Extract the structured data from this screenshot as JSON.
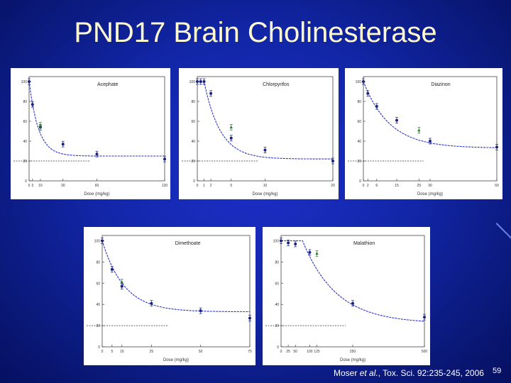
{
  "slide": {
    "title": "PND17 Brain Cholinesterase",
    "citation": {
      "author": "Moser ",
      "etal": "et al.",
      "rest": ", Tox. Sci. 92:235-245, 2006"
    },
    "page_number": "59"
  },
  "colors": {
    "background": "#1226a8",
    "title": "#fffbd0",
    "curve": "#2b35c8",
    "points": "#1a237e",
    "highlight_points": "#2e7d32",
    "reference_line": "#333333"
  },
  "chart_data": [
    {
      "type": "scatter",
      "title": "Acephate",
      "xlabel": "Dose (mg/kg)",
      "ylabel": "",
      "xlim": [
        0,
        120
      ],
      "ylim": [
        0,
        105
      ],
      "x_ticks": [
        "0",
        "3",
        "10",
        "30",
        "60",
        "120"
      ],
      "y_ticks": [
        "0",
        "20",
        "40",
        "60",
        "80",
        "100"
      ],
      "series": [
        {
          "x": [
            0,
            3,
            10,
            30,
            60,
            120
          ],
          "y": [
            100,
            77,
            54,
            37,
            27,
            22
          ]
        },
        {
          "x": [
            10
          ],
          "y": [
            56
          ]
        }
      ],
      "fit": {
        "plateau": 25,
        "top": 100,
        "k": 0.12
      },
      "reference_y": 20
    },
    {
      "type": "scatter",
      "title": "Chlorpyrifos",
      "xlabel": "Dose (mg/kg)",
      "ylabel": "",
      "xlim": [
        0,
        20
      ],
      "ylim": [
        0,
        105
      ],
      "x_ticks": [
        "0",
        "1",
        "2",
        "5",
        "10",
        "20"
      ],
      "y_ticks": [
        "0",
        "20",
        "40",
        "60",
        "80",
        "100"
      ],
      "series": [
        {
          "x": [
            0,
            0.5,
            1,
            2,
            5,
            10,
            20
          ],
          "y": [
            100,
            100,
            100,
            88,
            43,
            31,
            20
          ]
        },
        {
          "x": [
            5
          ],
          "y": [
            54
          ]
        }
      ],
      "fit": {
        "plateau": 22,
        "top": 100,
        "k": 0.42,
        "x0": 1
      },
      "reference_y": 20
    },
    {
      "type": "scatter",
      "title": "Diazinon",
      "xlabel": "Dose (mg/kg)",
      "ylabel": "",
      "xlim": [
        0,
        60
      ],
      "ylim": [
        0,
        105
      ],
      "x_ticks": [
        "0",
        "2",
        "6",
        "15",
        "25",
        "30",
        "60"
      ],
      "y_ticks": [
        "0",
        "20",
        "40",
        "60",
        "80",
        "100"
      ],
      "series": [
        {
          "x": [
            0,
            2,
            6,
            15,
            30,
            60
          ],
          "y": [
            100,
            88,
            75,
            61,
            40,
            34
          ]
        },
        {
          "x": [
            25
          ],
          "y": [
            51
          ]
        }
      ],
      "fit": {
        "plateau": 33,
        "top": 100,
        "k": 0.085
      },
      "reference_y": 20
    },
    {
      "type": "scatter",
      "title": "Dimethoate",
      "xlabel": "Dose (mg/kg)",
      "ylabel": "",
      "xlim": [
        0,
        75
      ],
      "ylim": [
        0,
        105
      ],
      "x_ticks": [
        "0",
        "5",
        "10",
        "25",
        "50",
        "75"
      ],
      "y_ticks": [
        "0",
        "20",
        "40",
        "60",
        "80",
        "100"
      ],
      "series": [
        {
          "x": [
            0,
            5,
            10,
            25,
            50,
            75
          ],
          "y": [
            100,
            73,
            57,
            41,
            34,
            27
          ]
        },
        {
          "x": [
            10
          ],
          "y": [
            61
          ]
        }
      ],
      "fit": {
        "plateau": 33,
        "top": 100,
        "k": 0.09
      },
      "reference_y": 20
    },
    {
      "type": "scatter",
      "title": "Malathion",
      "xlabel": "Dose (mg/kg)",
      "ylabel": "",
      "xlim": [
        0,
        500
      ],
      "ylim": [
        0,
        105
      ],
      "x_ticks": [
        "0",
        "25",
        "50",
        "100",
        "125",
        "250",
        "500"
      ],
      "y_ticks": [
        "0",
        "20",
        "40",
        "60",
        "80",
        "100"
      ],
      "series": [
        {
          "x": [
            0,
            25,
            50,
            100,
            250,
            500
          ],
          "y": [
            100,
            98,
            97,
            89,
            41,
            28
          ]
        },
        {
          "x": [
            125
          ],
          "y": [
            88
          ]
        }
      ],
      "fit": {
        "plateau": 22,
        "top": 100,
        "k": 0.0085,
        "x0": 75
      },
      "reference_y": 20
    }
  ]
}
